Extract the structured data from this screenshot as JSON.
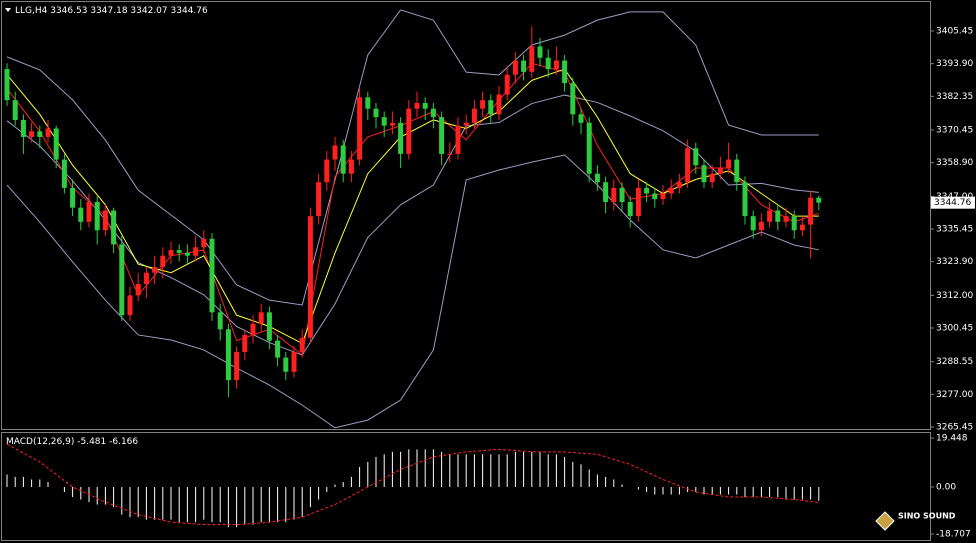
{
  "chart_data": [
    {
      "type": "candlestick",
      "title": "LLG,H4",
      "up_color": "#ff2020",
      "down_color": "#2ecc40",
      "open": [
        3392,
        3381,
        3374,
        3368,
        3370,
        3368,
        3371,
        3360,
        3350,
        3343,
        3338,
        3345,
        3335,
        3342,
        3330,
        3305,
        3312,
        3316,
        3320,
        3322,
        3326,
        3328,
        3327,
        3326,
        3329,
        3332,
        3306,
        3300,
        3282,
        3292,
        3298,
        3302,
        3306,
        3296,
        3290,
        3285,
        3292,
        3297,
        3340,
        3352,
        3360,
        3365,
        3355,
        3360,
        3382,
        3378,
        3375,
        3372,
        3373,
        3362,
        3378,
        3380,
        3378,
        3375,
        3362,
        3362,
        3372,
        3373,
        3378,
        3381,
        3376,
        3383,
        3390,
        3395,
        3391,
        3400,
        3396,
        3392,
        3395,
        3387,
        3376,
        3373,
        3355,
        3352,
        3345,
        3350,
        3345,
        3340,
        3350,
        3348,
        3346,
        3348,
        3350,
        3352,
        3364,
        3358,
        3352,
        3355,
        3357,
        3360,
        3352,
        3340,
        3335,
        3338,
        3342,
        3338,
        3340,
        3335,
        3337,
        3346.53
      ],
      "high": [
        3394,
        3384,
        3376,
        3373,
        3372,
        3374,
        3372,
        3362,
        3353,
        3346,
        3348,
        3347,
        3344,
        3343,
        3333,
        3315,
        3320,
        3322,
        3326,
        3329,
        3331,
        3330,
        3330,
        3333,
        3335,
        3334,
        3309,
        3302,
        3294,
        3300,
        3305,
        3309,
        3308,
        3298,
        3292,
        3294,
        3300,
        3343,
        3355,
        3363,
        3368,
        3367,
        3363,
        3385,
        3384,
        3380,
        3377,
        3377,
        3375,
        3381,
        3384,
        3382,
        3380,
        3377,
        3366,
        3375,
        3376,
        3381,
        3384,
        3383,
        3386,
        3393,
        3398,
        3397,
        3407,
        3403,
        3399,
        3400,
        3397,
        3389,
        3378,
        3375,
        3358,
        3354,
        3353,
        3352,
        3347,
        3353,
        3352,
        3350,
        3351,
        3353,
        3355,
        3367,
        3366,
        3360,
        3358,
        3361,
        3366,
        3362,
        3354,
        3342,
        3341,
        3345,
        3344,
        3343,
        3342,
        3340,
        3349,
        3347.18
      ],
      "low": [
        3379,
        3372,
        3362,
        3366,
        3364,
        3366,
        3357,
        3348,
        3340,
        3335,
        3336,
        3330,
        3333,
        3327,
        3303,
        3303,
        3310,
        3311,
        3316,
        3318,
        3323,
        3324,
        3323,
        3324,
        3327,
        3303,
        3296,
        3276,
        3279,
        3289,
        3295,
        3299,
        3293,
        3287,
        3282,
        3283,
        3290,
        3295,
        3337,
        3349,
        3356,
        3352,
        3352,
        3358,
        3374,
        3371,
        3368,
        3369,
        3357,
        3360,
        3375,
        3374,
        3371,
        3358,
        3359,
        3360,
        3369,
        3371,
        3375,
        3373,
        3374,
        3381,
        3387,
        3388,
        3389,
        3393,
        3389,
        3390,
        3384,
        3372,
        3369,
        3352,
        3349,
        3341,
        3342,
        3342,
        3336,
        3338,
        3345,
        3343,
        3344,
        3346,
        3348,
        3350,
        3355,
        3350,
        3350,
        3353,
        3355,
        3349,
        3337,
        3332,
        3333,
        3336,
        3335,
        3336,
        3332,
        3333,
        3325,
        3342.07
      ],
      "close": [
        3381,
        3374,
        3368,
        3370,
        3368,
        3371,
        3360,
        3350,
        3343,
        3338,
        3345,
        3335,
        3342,
        3330,
        3305,
        3312,
        3316,
        3320,
        3322,
        3326,
        3328,
        3327,
        3326,
        3329,
        3332,
        3306,
        3300,
        3282,
        3292,
        3298,
        3302,
        3306,
        3296,
        3290,
        3285,
        3292,
        3297,
        3340,
        3352,
        3360,
        3365,
        3355,
        3360,
        3382,
        3378,
        3375,
        3372,
        3373,
        3362,
        3378,
        3380,
        3378,
        3375,
        3362,
        3362,
        3372,
        3373,
        3378,
        3381,
        3376,
        3383,
        3390,
        3395,
        3391,
        3400,
        3396,
        3392,
        3395,
        3387,
        3376,
        3373,
        3355,
        3352,
        3345,
        3350,
        3345,
        3340,
        3350,
        3348,
        3346,
        3348,
        3350,
        3352,
        3364,
        3358,
        3352,
        3355,
        3357,
        3360,
        3352,
        3340,
        3335,
        3338,
        3342,
        3338,
        3340,
        3335,
        3337,
        3346.53,
        3344.76
      ],
      "overlay_x": [
        0,
        4,
        8,
        12,
        16,
        20,
        24,
        28,
        32,
        36,
        40,
        44,
        48,
        52,
        56,
        60,
        64,
        68,
        72,
        76,
        80,
        84,
        88,
        92,
        96,
        99
      ],
      "overlays": [
        {
          "color": "#9c9cc4",
          "values": [
            3396.3,
            3391.7,
            3381.1,
            3366.9,
            3349.2,
            3340.4,
            3331.6,
            3315.7,
            3310.3,
            3308.6,
            3352.8,
            3397.0,
            3412.9,
            3409.3,
            3390.9,
            3389.9,
            3400.5,
            3404.0,
            3409.3,
            3412.2,
            3412.2,
            3400.5,
            3372.2,
            3368.7,
            3368.7,
            3368.7
          ]
        },
        {
          "color": "#9c9cc4",
          "values": [
            3373.7,
            3364.8,
            3352.5,
            3338.6,
            3323.6,
            3318.3,
            3312.2,
            3301.0,
            3295.3,
            3290.9,
            3309.0,
            3332.5,
            3344.0,
            3351.0,
            3371.9,
            3373.1,
            3379.8,
            3382.8,
            3380.2,
            3375.4,
            3370.2,
            3362.9,
            3351.0,
            3351.6,
            3349.3,
            3348.4
          ]
        },
        {
          "color": "#9c9cc4",
          "values": [
            3351.0,
            3337.9,
            3323.8,
            3310.3,
            3298.0,
            3296.2,
            3292.7,
            3286.3,
            3280.3,
            3273.2,
            3265.2,
            3267.9,
            3275.0,
            3292.7,
            3352.8,
            3356.3,
            3359.1,
            3361.6,
            3351.0,
            3338.6,
            3328.1,
            3325.2,
            3329.8,
            3334.4,
            3329.8,
            3328.1
          ]
        },
        {
          "color": "#ff2020",
          "values": [
            3385,
            3370,
            3350,
            3340,
            3312,
            3326,
            3328,
            3296,
            3300,
            3291,
            3354,
            3368,
            3372,
            3377,
            3367,
            3381,
            3394,
            3391,
            3365,
            3346,
            3348,
            3357,
            3357,
            3344,
            3338,
            3341
          ]
        },
        {
          "color": "#ffff30",
          "values": [
            3390,
            3376,
            3358,
            3344,
            3323,
            3320,
            3326,
            3305,
            3301,
            3295,
            3327,
            3355,
            3368,
            3374,
            3371,
            3377,
            3388,
            3392,
            3375,
            3355,
            3348,
            3353,
            3356,
            3348,
            3340,
            3340
          ]
        }
      ],
      "ylim": [
        3264.4,
        3415.35
      ],
      "yticks": [
        3265.45,
        {
          "value": 3277,
          "label": "3277.00"
        },
        3288.55,
        3300.45,
        {
          "value": 3312,
          "label": "3312.00"
        },
        {
          "value": 3323.9,
          "label": "3323.90"
        },
        3335.45,
        {
          "value": 3347,
          "label": "3347.00"
        },
        {
          "value": 3358.9,
          "label": "3358.90"
        },
        3370.45,
        3382.35,
        {
          "value": 3393.9,
          "label": "3393.90"
        },
        3405.45
      ]
    },
    {
      "type": "macd",
      "title": "MACD(12,26,9)",
      "histogram_color": "#ffffff",
      "signal_color": "#ff2020",
      "histogram": [
        5,
        4,
        4,
        3,
        3,
        2,
        0,
        -2,
        -4,
        -5,
        -6,
        -7,
        -7,
        -8,
        -11,
        -12,
        -12,
        -13,
        -13,
        -13,
        -13,
        -14,
        -14,
        -14,
        -13,
        -14,
        -14,
        -16,
        -16,
        -15,
        -15,
        -14,
        -14,
        -14,
        -14,
        -13,
        -12,
        -8,
        -5,
        -2,
        1,
        2,
        4,
        8,
        10,
        12,
        13,
        14,
        14,
        15,
        15,
        15,
        15,
        14,
        13,
        13,
        13,
        13,
        13,
        13,
        13,
        13,
        14,
        14,
        14,
        14,
        13,
        13,
        12,
        10,
        9,
        7,
        5,
        4,
        3,
        1,
        0,
        -1,
        -2,
        -3,
        -3,
        -3,
        -3,
        -2,
        -2,
        -3,
        -3,
        -3,
        -3,
        -3,
        -4,
        -4,
        -4,
        -4,
        -4,
        -5,
        -5,
        -5,
        -5,
        -5.481
      ],
      "signal_x": [
        0,
        4,
        8,
        12,
        16,
        20,
        24,
        28,
        32,
        36,
        40,
        44,
        48,
        52,
        56,
        60,
        64,
        68,
        72,
        76,
        80,
        84,
        88,
        92,
        96,
        99
      ],
      "signal": [
        17,
        10,
        0,
        -6,
        -11,
        -14,
        -15,
        -15,
        -14,
        -12,
        -7,
        0,
        7,
        12,
        14,
        15,
        14,
        14,
        13,
        9,
        3,
        -2,
        -4,
        -4,
        -5,
        -6.166
      ],
      "ylim": [
        -20.3,
        21.5
      ],
      "yticks": [
        19.448,
        {
          "value": 0,
          "label": "0.00"
        },
        -18.707
      ]
    }
  ],
  "watermark": "SINO SOUND"
}
